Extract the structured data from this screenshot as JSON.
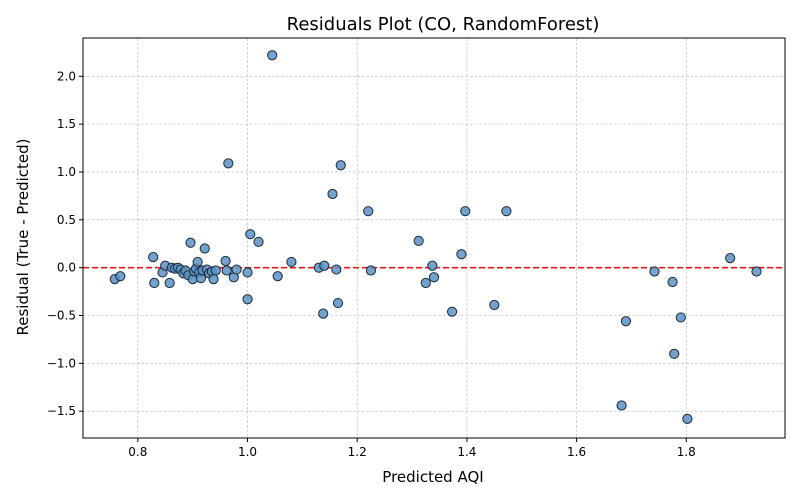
{
  "chart_data": {
    "type": "scatter",
    "title": "Residuals Plot (CO, RandomForest)",
    "xlabel": "Predicted AQI",
    "ylabel": "Residual (True - Predicted)",
    "xlim": [
      0.7,
      1.98
    ],
    "ylim": [
      -1.78,
      2.4
    ],
    "xticks": [
      0.8,
      1.0,
      1.2,
      1.4,
      1.6,
      1.8
    ],
    "yticks": [
      -1.5,
      -1.0,
      -0.5,
      0.0,
      0.5,
      1.0,
      1.5,
      2.0
    ],
    "xtick_labels": [
      "0.8",
      "1.0",
      "1.2",
      "1.4",
      "1.6",
      "1.8"
    ],
    "ytick_labels": [
      "−1.5",
      "−1.0",
      "−0.5",
      "0.0",
      "0.5",
      "1.0",
      "1.5",
      "2.0"
    ],
    "grid": true,
    "reference_line": {
      "y": 0,
      "color": "#e41a1c",
      "style": "dashed"
    },
    "point_color": "#5b93c4",
    "points": [
      [
        0.758,
        -0.12
      ],
      [
        0.768,
        -0.09
      ],
      [
        0.828,
        0.11
      ],
      [
        0.83,
        -0.16
      ],
      [
        0.845,
        -0.05
      ],
      [
        0.85,
        0.02
      ],
      [
        0.858,
        -0.16
      ],
      [
        0.862,
        0.0
      ],
      [
        0.868,
        -0.01
      ],
      [
        0.873,
        0.0
      ],
      [
        0.878,
        -0.02
      ],
      [
        0.883,
        -0.06
      ],
      [
        0.887,
        -0.03
      ],
      [
        0.892,
        -0.08
      ],
      [
        0.896,
        0.26
      ],
      [
        0.9,
        -0.12
      ],
      [
        0.903,
        -0.04
      ],
      [
        0.906,
        -0.01
      ],
      [
        0.909,
        0.06
      ],
      [
        0.912,
        -0.05
      ],
      [
        0.915,
        -0.11
      ],
      [
        0.918,
        -0.03
      ],
      [
        0.922,
        0.2
      ],
      [
        0.926,
        -0.02
      ],
      [
        0.93,
        -0.06
      ],
      [
        0.935,
        -0.04
      ],
      [
        0.938,
        -0.12
      ],
      [
        0.942,
        -0.03
      ],
      [
        0.96,
        0.07
      ],
      [
        0.962,
        -0.03
      ],
      [
        0.965,
        1.09
      ],
      [
        0.975,
        -0.1
      ],
      [
        0.98,
        -0.02
      ],
      [
        1.0,
        -0.05
      ],
      [
        1.0,
        -0.33
      ],
      [
        1.005,
        0.35
      ],
      [
        1.02,
        0.27
      ],
      [
        1.055,
        -0.09
      ],
      [
        1.045,
        2.22
      ],
      [
        1.08,
        0.06
      ],
      [
        1.13,
        0.0
      ],
      [
        1.14,
        0.02
      ],
      [
        1.138,
        -0.48
      ],
      [
        1.155,
        0.77
      ],
      [
        1.162,
        -0.02
      ],
      [
        1.165,
        -0.37
      ],
      [
        1.17,
        1.07
      ],
      [
        1.22,
        0.59
      ],
      [
        1.225,
        -0.03
      ],
      [
        1.312,
        0.28
      ],
      [
        1.325,
        -0.16
      ],
      [
        1.337,
        0.02
      ],
      [
        1.34,
        -0.1
      ],
      [
        1.373,
        -0.46
      ],
      [
        1.39,
        0.14
      ],
      [
        1.397,
        0.59
      ],
      [
        1.45,
        -0.39
      ],
      [
        1.472,
        0.59
      ],
      [
        1.682,
        -1.44
      ],
      [
        1.69,
        -0.56
      ],
      [
        1.742,
        -0.04
      ],
      [
        1.775,
        -0.15
      ],
      [
        1.778,
        -0.9
      ],
      [
        1.79,
        -0.52
      ],
      [
        1.802,
        -1.58
      ],
      [
        1.88,
        0.1
      ],
      [
        1.928,
        -0.04
      ]
    ]
  }
}
